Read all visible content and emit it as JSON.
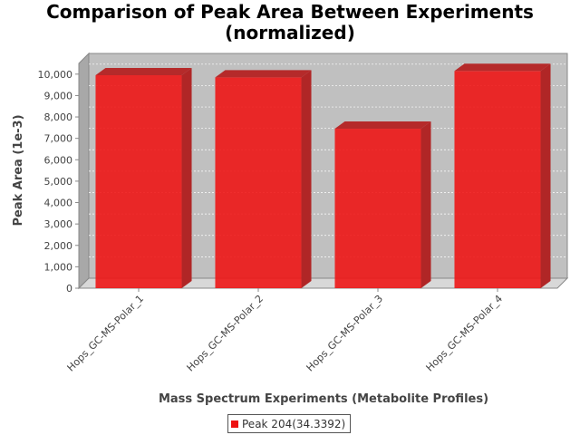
{
  "chart_data": {
    "type": "bar",
    "style": "3d",
    "title": "Comparison of Peak Area Between Experiments (normalized)",
    "title_lines": [
      "Comparison of Peak Area Between Experiments",
      "(normalized)"
    ],
    "xlabel": "Mass Spectrum Experiments (Metabolite Profiles)",
    "ylabel": "Peak Area (1e-3)",
    "categories": [
      "Hops_GC-MS-Polar_1",
      "Hops_GC-MS-Polar_2",
      "Hops_GC-MS-Polar_3",
      "Hops_GC-MS-Polar_4"
    ],
    "series": [
      {
        "name": "Peak 204(34.3392)",
        "values": [
          9950,
          9850,
          7450,
          10150
        ],
        "color": "#ee1111"
      }
    ],
    "ylim": [
      0,
      10500
    ],
    "yticks": [
      "0",
      "1,000",
      "2,000",
      "3,000",
      "4,000",
      "5,000",
      "6,000",
      "7,000",
      "8,000",
      "9,000",
      "10,000"
    ],
    "grid": true,
    "legend_position": "bottom"
  }
}
